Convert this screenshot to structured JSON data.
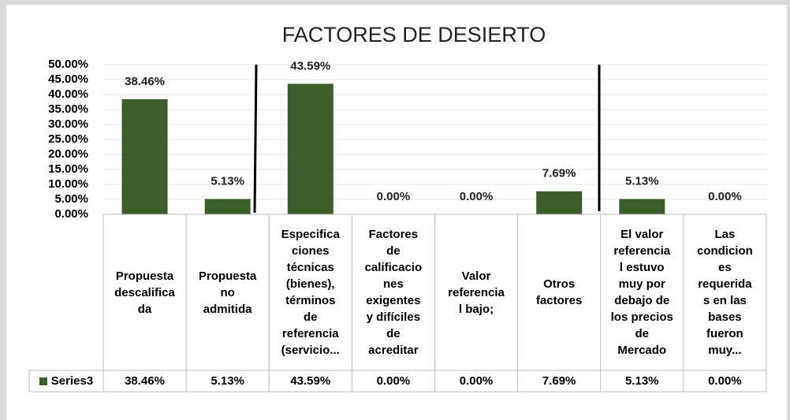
{
  "chart_data": {
    "type": "bar",
    "title": "FACTORES DE DESIERTO",
    "categories": [
      "Propuesta\ndescalifica\nda",
      "Propuesta\nno\nadmitida",
      "Especifica\nciones\ntécnicas\n(bienes),\ntérminos\nde\nreferencia\n(servicio...",
      "Factores\nde\ncalificacio\nnes\nexigentes\ny  difíciles\nde\nacreditar",
      "Valor\nreferencia\nl bajo;",
      "Otros\nfactores",
      "El valor\nreferencia\nl estuvo\nmuy por\ndebajo  de\nlos precios\nde\nMercado",
      "Las\ncondicion\nes\nrequerida\ns en las\nbases\nfueron\nmuy..."
    ],
    "series": [
      {
        "name": "Series3",
        "color": "#3b5e2b",
        "values": [
          38.46,
          5.13,
          43.59,
          0,
          0,
          7.69,
          5.13,
          0
        ],
        "value_labels": [
          "38.46%",
          "5.13%",
          "43.59%",
          "0.00%",
          "0.00%",
          "7.69%",
          "5.13%",
          "0.00%"
        ]
      }
    ],
    "ylim": [
      0,
      50
    ],
    "yticks": [
      {
        "value": 0,
        "label": "0.00%"
      },
      {
        "value": 5,
        "label": "5.00%"
      },
      {
        "value": 10,
        "label": "10.00%"
      },
      {
        "value": 15,
        "label": "15.00%"
      },
      {
        "value": 20,
        "label": "20.00%"
      },
      {
        "value": 25,
        "label": "25.00%"
      },
      {
        "value": 30,
        "label": "30.00%"
      },
      {
        "value": 35,
        "label": "35.00%"
      },
      {
        "value": 40,
        "label": "40.00%"
      },
      {
        "value": 45,
        "label": "45.00%"
      },
      {
        "value": 50,
        "label": "50.00%"
      }
    ],
    "grid": true
  }
}
